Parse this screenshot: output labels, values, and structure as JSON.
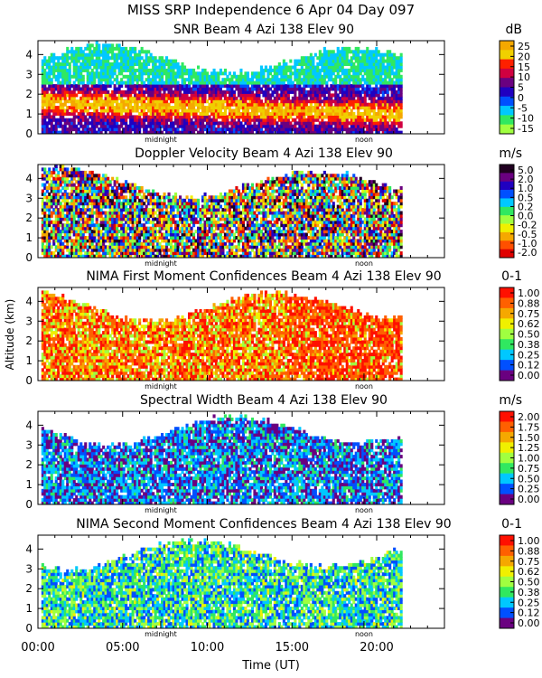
{
  "figure": {
    "title": "MISS SRP Independence    6 Apr 04 Day 097",
    "ylabel": "Altitude (km)",
    "xlabel": "Time (UT)",
    "x_ticks": [
      "00:00",
      "05:00",
      "10:00",
      "15:00",
      "20:00"
    ],
    "x_tick_hours": [
      0,
      5,
      10,
      15,
      20
    ],
    "x_range_hours": [
      0,
      24
    ],
    "y_ticks": [
      "0",
      "1",
      "2",
      "3",
      "4"
    ],
    "y_range_km": [
      0,
      4.7
    ],
    "markers": [
      {
        "label": "midnight",
        "hour": 7.25
      },
      {
        "label": "noon",
        "hour": 19.25
      }
    ]
  },
  "chart_data": [
    {
      "type": "heatmap",
      "title": "SNR Beam 4 Azi 138 Elev 90",
      "unit": "dB",
      "colorbar_ticks": [
        "25",
        "20",
        "15",
        "10",
        "5",
        "0",
        "-5",
        "-10",
        "-15"
      ],
      "colors": [
        "#f5a800",
        "#f0d000",
        "#ff2000",
        "#d00040",
        "#6a0080",
        "#2000c0",
        "#0050ff",
        "#00c8ff",
        "#30e860",
        "#a0ff40"
      ],
      "x_range_hours": [
        0,
        21.5
      ],
      "y_range_km": [
        0,
        4.7
      ]
    },
    {
      "type": "heatmap",
      "title": "Doppler Velocity Beam 4 Azi 138 Elev 90",
      "unit": "m/s",
      "colorbar_ticks": [
        "5.0",
        "2.0",
        "1.0",
        "0.5",
        "0.2",
        "0.0",
        "-0.2",
        "-0.5",
        "-1.0",
        "-2.0"
      ],
      "colors": [
        "#200020",
        "#6a0080",
        "#2000c0",
        "#0050ff",
        "#00c8ff",
        "#30e860",
        "#a0ff40",
        "#f0f000",
        "#f5a800",
        "#ff5000",
        "#e00000"
      ],
      "x_range_hours": [
        0,
        21.5
      ],
      "y_range_km": [
        0,
        4.7
      ]
    },
    {
      "type": "heatmap",
      "title": "NIMA First Moment Confidences Beam 4 Azi 138 Elev 90",
      "unit": "0-1",
      "colorbar_ticks": [
        "1.00",
        "0.88",
        "0.75",
        "0.62",
        "0.50",
        "0.38",
        "0.25",
        "0.12",
        "0.00"
      ],
      "colors": [
        "#ff1000",
        "#ff6000",
        "#f5a800",
        "#f0f000",
        "#a0ff40",
        "#30e860",
        "#00c8ff",
        "#0050ff",
        "#6a0080"
      ],
      "x_range_hours": [
        0,
        21.5
      ],
      "y_range_km": [
        0,
        4.7
      ]
    },
    {
      "type": "heatmap",
      "title": "Spectral Width Beam 4 Azi 138 Elev 90",
      "unit": "m/s",
      "colorbar_ticks": [
        "2.00",
        "1.75",
        "1.50",
        "1.25",
        "1.00",
        "0.75",
        "0.50",
        "0.25",
        "0.00"
      ],
      "colors": [
        "#ff1000",
        "#ff6000",
        "#f5a800",
        "#f0f000",
        "#a0ff40",
        "#30e860",
        "#00c8ff",
        "#0050ff",
        "#6a0080"
      ],
      "x_range_hours": [
        0,
        21.5
      ],
      "y_range_km": [
        0,
        4.7
      ]
    },
    {
      "type": "heatmap",
      "title": "NIMA Second Moment Confidences Beam 4 Azi 138 Elev 90",
      "unit": "0-1",
      "colorbar_ticks": [
        "1.00",
        "0.88",
        "0.75",
        "0.62",
        "0.50",
        "0.38",
        "0.25",
        "0.12",
        "0.00"
      ],
      "colors": [
        "#ff1000",
        "#ff6000",
        "#f5a800",
        "#f0f000",
        "#a0ff40",
        "#30e860",
        "#00c8ff",
        "#0050ff",
        "#6a0080"
      ],
      "x_range_hours": [
        0,
        21.5
      ],
      "y_range_km": [
        0,
        4.7
      ]
    }
  ]
}
